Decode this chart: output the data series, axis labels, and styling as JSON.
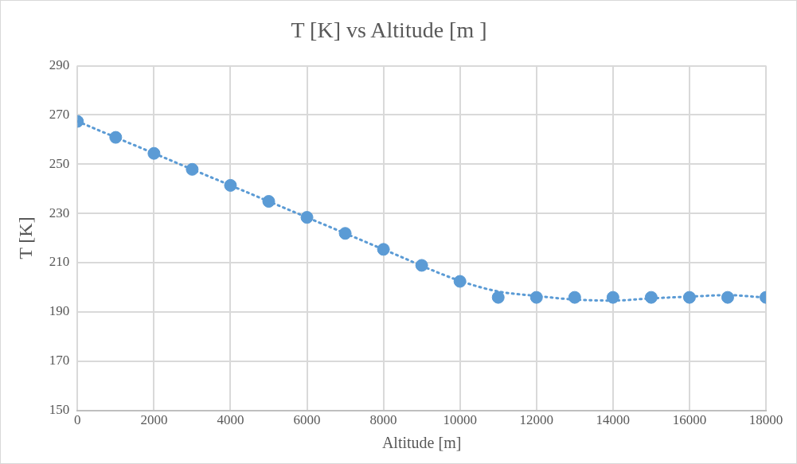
{
  "chart_data": {
    "type": "scatter",
    "title": "T [K] vs Altitude [m ]",
    "xlabel": "Altitude [m]",
    "ylabel": "T [K]",
    "xlim": [
      0,
      18000
    ],
    "xticks": [
      0,
      2000,
      4000,
      6000,
      8000,
      10000,
      12000,
      14000,
      16000,
      18000
    ],
    "ylim": [
      150,
      290
    ],
    "yticks": [
      150,
      170,
      190,
      210,
      230,
      250,
      270,
      290
    ],
    "grid": true,
    "legend": false,
    "series": [
      {
        "type": "scatter",
        "color": "#5b9bd5",
        "marker": "circle",
        "x": [
          0,
          1000,
          2000,
          3000,
          4000,
          5000,
          6000,
          7000,
          8000,
          9000,
          10000,
          11000,
          12000,
          13000,
          14000,
          15000,
          16000,
          17000,
          18000
        ],
        "values": [
          267.4,
          260.9,
          254.4,
          247.9,
          241.4,
          234.9,
          228.4,
          221.9,
          215.4,
          208.9,
          202.4,
          195.9,
          195.9,
          195.9,
          195.9,
          195.9,
          195.9,
          195.9,
          195.9
        ]
      },
      {
        "type": "line",
        "color": "#5b9bd5",
        "marker": "none",
        "line_style": "dotted",
        "x": [
          0,
          2000,
          4000,
          6000,
          8000,
          10000,
          11000,
          12000,
          13000,
          14000,
          15000,
          16000,
          17000,
          18000
        ],
        "values": [
          267.4,
          254.4,
          241.4,
          228.4,
          215.4,
          202.6,
          198.3,
          196.5,
          195,
          194.6,
          195.5,
          196.2,
          196.8,
          195.8
        ]
      }
    ]
  }
}
